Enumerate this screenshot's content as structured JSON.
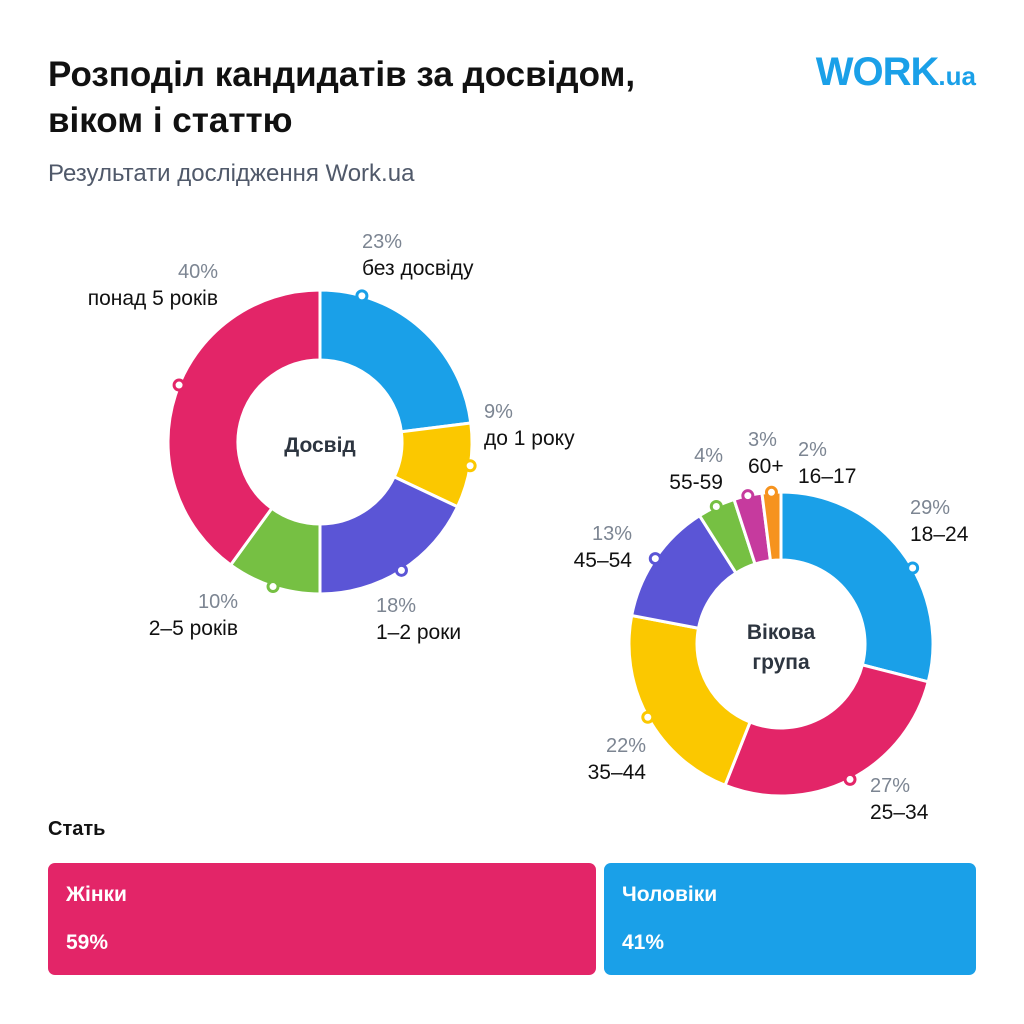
{
  "header": {
    "title_line1": "Розподіл кандидатів за досвідом,",
    "title_line2": "віком і статтю",
    "subtitle": "Результати дослідження Work.ua",
    "logo_main": "WORK",
    "logo_suffix": ".ua"
  },
  "colors": {
    "pink": "#e32568",
    "blue": "#1aa0e8",
    "yellow": "#fbc800",
    "purple": "#5b55d6",
    "green": "#76c043",
    "magenta": "#c63a9e",
    "orange": "#f6931e",
    "pct_gray": "#7c8592"
  },
  "chart_data": [
    {
      "type": "pie",
      "title": "Досвід",
      "center_label": "Досвід",
      "slices": [
        {
          "label": "без досвіду",
          "value": 23,
          "pct": "23%",
          "color": "#1aa0e8"
        },
        {
          "label": "до 1 року",
          "value": 9,
          "pct": "9%",
          "color": "#fbc800"
        },
        {
          "label": "1–2 роки",
          "value": 18,
          "pct": "18%",
          "color": "#5b55d6"
        },
        {
          "label": "2–5 років",
          "value": 10,
          "pct": "10%",
          "color": "#76c043"
        },
        {
          "label": "понад 5 років",
          "value": 40,
          "pct": "40%",
          "color": "#e32568"
        }
      ]
    },
    {
      "type": "pie",
      "title": "Вікова група",
      "center_label_line1": "Вікова",
      "center_label_line2": "група",
      "slices": [
        {
          "label": "18–24",
          "value": 29,
          "pct": "29%",
          "color": "#1aa0e8"
        },
        {
          "label": "25–34",
          "value": 27,
          "pct": "27%",
          "color": "#e32568"
        },
        {
          "label": "35–44",
          "value": 22,
          "pct": "22%",
          "color": "#fbc800"
        },
        {
          "label": "45–54",
          "value": 13,
          "pct": "13%",
          "color": "#5b55d6"
        },
        {
          "label": "55-59",
          "value": 4,
          "pct": "4%",
          "color": "#76c043"
        },
        {
          "label": "60+",
          "value": 3,
          "pct": "3%",
          "color": "#c63a9e"
        },
        {
          "label": "16–17",
          "value": 2,
          "pct": "2%",
          "color": "#f6931e"
        }
      ]
    },
    {
      "type": "bar",
      "title": "Стать",
      "categories": [
        "Жінки",
        "Чоловіки"
      ],
      "values": [
        59,
        41
      ],
      "labels": [
        "59%",
        "41%"
      ]
    }
  ]
}
